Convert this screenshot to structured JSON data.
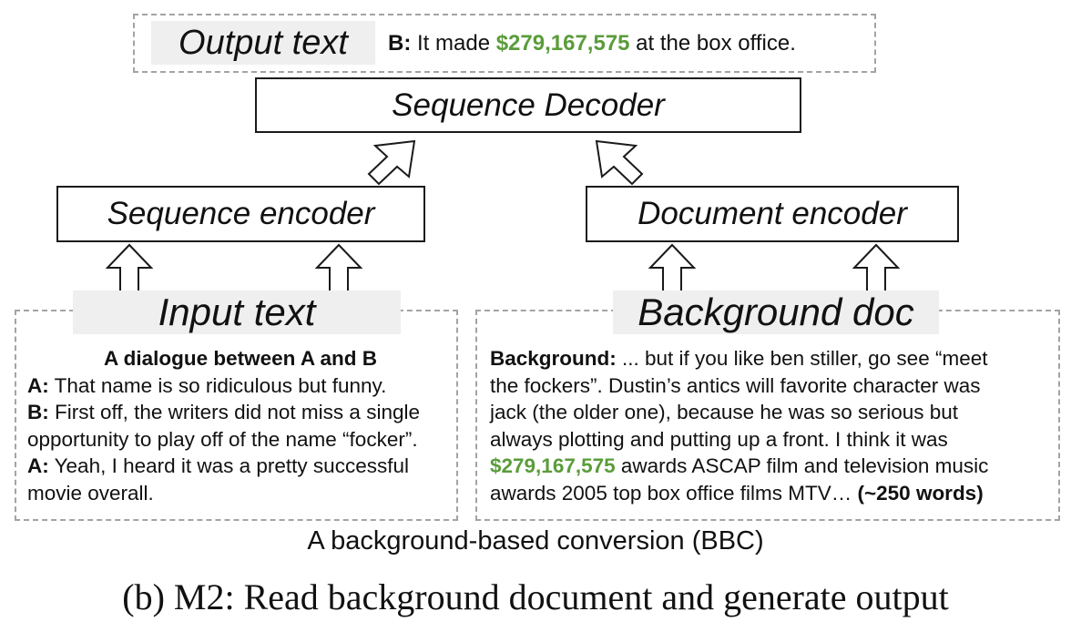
{
  "output": {
    "label": "Output text",
    "speaker": "B:",
    "text_before": " It made ",
    "amount": "$279,167,575",
    "text_after": " at the box office."
  },
  "decoder": {
    "label": "Sequence Decoder"
  },
  "seq_encoder": {
    "label": "Sequence encoder"
  },
  "doc_encoder": {
    "label": "Document encoder"
  },
  "input": {
    "label": "Input text",
    "heading": "A dialogue between A and B",
    "lines": [
      {
        "speaker": "A:",
        "text": " That name is so ridiculous but funny."
      },
      {
        "speaker": "B:",
        "text": " First off, the writers did not miss a single"
      },
      {
        "speaker": "",
        "text": "opportunity to play off of the name “focker”."
      },
      {
        "speaker": "A:",
        "text": " Yeah, I heard it was a pretty successful"
      },
      {
        "speaker": "",
        "text": "movie overall."
      }
    ]
  },
  "background": {
    "label": "Background doc",
    "speaker": "Background:",
    "line1_text": " ... but if you like ben stiller, go see “meet",
    "line2": "the fockers”. Dustin’s antics will favorite character was",
    "line3": "jack (the older one), because he was so serious but",
    "line4": "always plotting and putting up a front. I think it was",
    "amount": "$279,167,575",
    "line5_text": " awards ASCAP film and television music",
    "line6_text": "awards 2005 top box office films MTV… ",
    "word_count": "(~250 words)"
  },
  "captions": {
    "subtitle": "A background-based conversion (BBC)",
    "figure": "(b) M2: Read background document and generate output"
  },
  "colors": {
    "highlight": "#5a9c3a",
    "dashed_border": "#a3a3a3",
    "label_background": "#efefef"
  }
}
